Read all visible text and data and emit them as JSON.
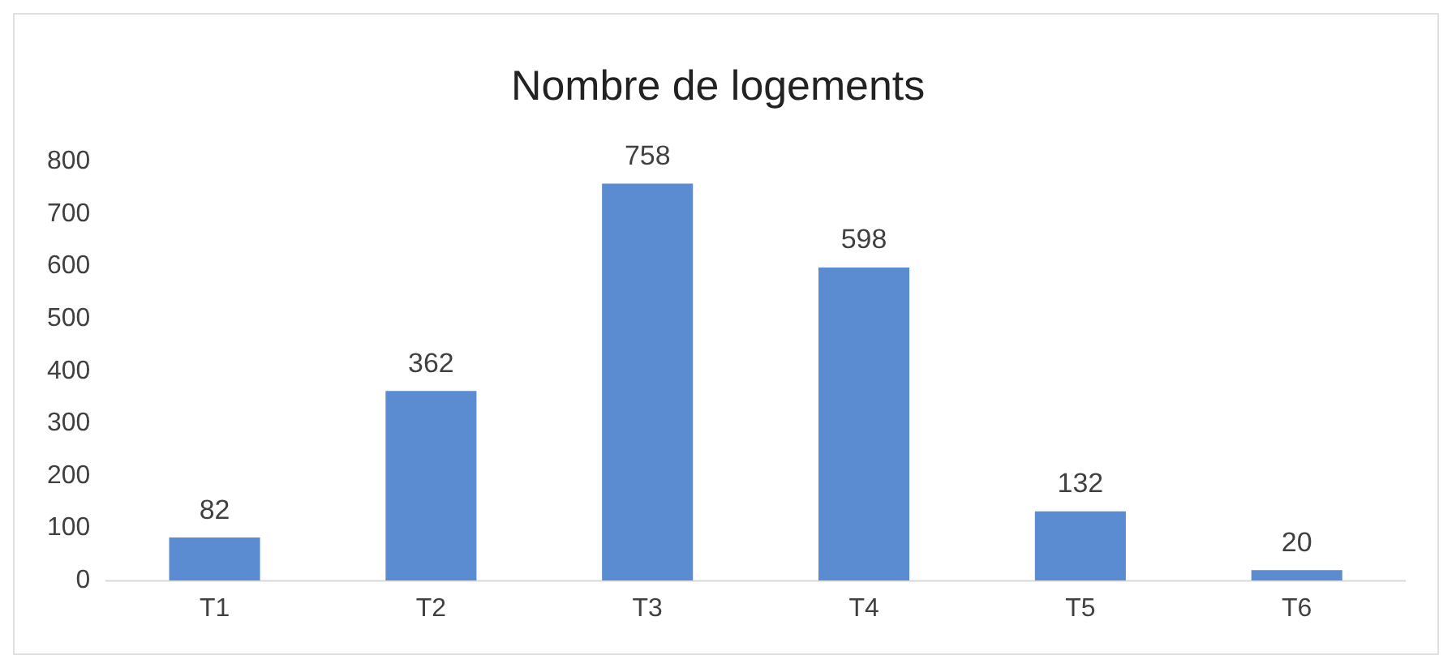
{
  "chart_data": {
    "type": "bar",
    "title": "Nombre de logements",
    "categories": [
      "T1",
      "T2",
      "T3",
      "T4",
      "T5",
      "T6"
    ],
    "values": [
      82,
      362,
      758,
      598,
      132,
      20
    ],
    "color": "#5b8bd0",
    "ylim": [
      0,
      800
    ],
    "yticks": [
      0,
      100,
      200,
      300,
      400,
      500,
      600,
      700,
      800
    ],
    "data_labels": true
  }
}
